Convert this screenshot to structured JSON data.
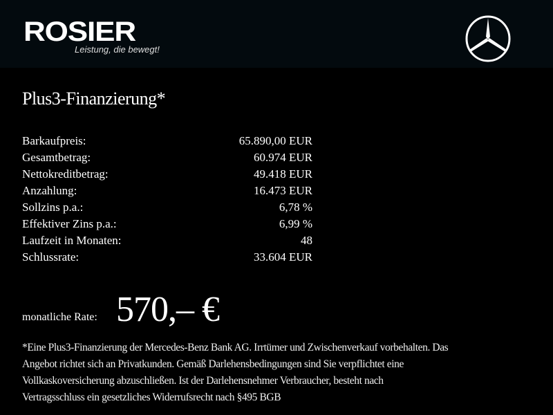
{
  "header": {
    "brand": "ROSIER",
    "slogan": "Leistung, die bewegt!",
    "logo_icon": "mercedes-star-icon"
  },
  "title": "Plus3-Finanzierung*",
  "rows": [
    {
      "label": "Barkaufpreis:",
      "value": "65.890,00 EUR"
    },
    {
      "label": "Gesamtbetrag:",
      "value": "60.974 EUR"
    },
    {
      "label": "Nettokreditbetrag:",
      "value": "49.418 EUR"
    },
    {
      "label": "Anzahlung:",
      "value": "16.473 EUR"
    },
    {
      "label": "Sollzins p.a.:",
      "value": "6,78 %"
    },
    {
      "label": "Effektiver Zins p.a.:",
      "value": "6,99 %"
    },
    {
      "label": "Laufzeit in Monaten:",
      "value": "48"
    },
    {
      "label": "Schlussrate:",
      "value": "33.604 EUR"
    }
  ],
  "rate": {
    "label": "monatliche Rate:",
    "value": "570,– €"
  },
  "footnote": [
    "*Eine Plus3-Finanzierung der Mercedes-Benz Bank AG. Irrtümer und Zwischenverkauf vorbehalten. Das",
    "Angebot richtet sich an Privatkunden. Gemäß Darlehensbedingungen sind Sie verpflichtet eine",
    "Vollkaskoversicherung abzuschließen. Ist der Darlehensnehmer Verbraucher, besteht nach",
    "Vertragsschluss ein gesetzliches Widerrufsrecht nach §495 BGB"
  ]
}
